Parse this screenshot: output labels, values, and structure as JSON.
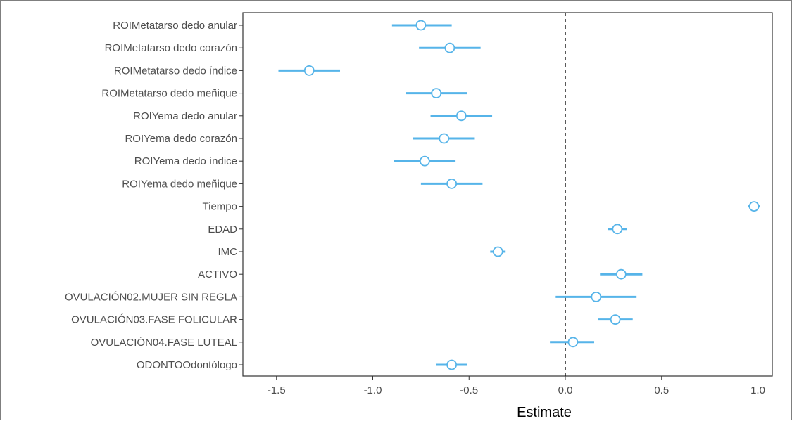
{
  "chart_data": {
    "type": "scatter",
    "subtype": "coefficient-plot",
    "title": "",
    "xlabel": "Estimate",
    "ylabel": "",
    "xlim": [
      -1.6,
      1.1
    ],
    "xticks": [
      -1.5,
      -1.0,
      -0.5,
      0.0,
      0.5,
      1.0
    ],
    "xtick_labels": [
      "-1.5",
      "-1.0",
      "-0.5",
      "0.0",
      "0.5",
      "1.0"
    ],
    "reference_line": 0.0,
    "grid": false,
    "color": "#56B4E9",
    "series": [
      {
        "categories": [
          "ROIMetatarso dedo anular",
          "ROIMetatarso dedo corazón",
          "ROIMetatarso dedo índice",
          "ROIMetatarso dedo meñique",
          "ROIYema dedo anular",
          "ROIYema dedo corazón",
          "ROIYema dedo índice",
          "ROIYema dedo meñique",
          "Tiempo",
          "EDAD",
          "IMC",
          "ACTIVO",
          "OVULACIÓN02.MUJER SIN REGLA",
          "OVULACIÓN03.FASE FOLICULAR",
          "OVULACIÓN04.FASE LUTEAL",
          "ODONTOOdontólogo"
        ],
        "estimate": [
          -0.75,
          -0.6,
          -1.33,
          -0.67,
          -0.54,
          -0.63,
          -0.73,
          -0.59,
          0.98,
          0.27,
          -0.35,
          0.29,
          0.16,
          0.26,
          0.04,
          -0.59
        ],
        "lower": [
          -0.9,
          -0.76,
          -1.49,
          -0.83,
          -0.7,
          -0.79,
          -0.89,
          -0.75,
          0.95,
          0.22,
          -0.39,
          0.18,
          -0.05,
          0.17,
          -0.08,
          -0.67
        ],
        "upper": [
          -0.59,
          -0.44,
          -1.17,
          -0.51,
          -0.38,
          -0.47,
          -0.57,
          -0.43,
          1.01,
          0.32,
          -0.31,
          0.4,
          0.37,
          0.35,
          0.15,
          -0.51
        ]
      }
    ]
  }
}
